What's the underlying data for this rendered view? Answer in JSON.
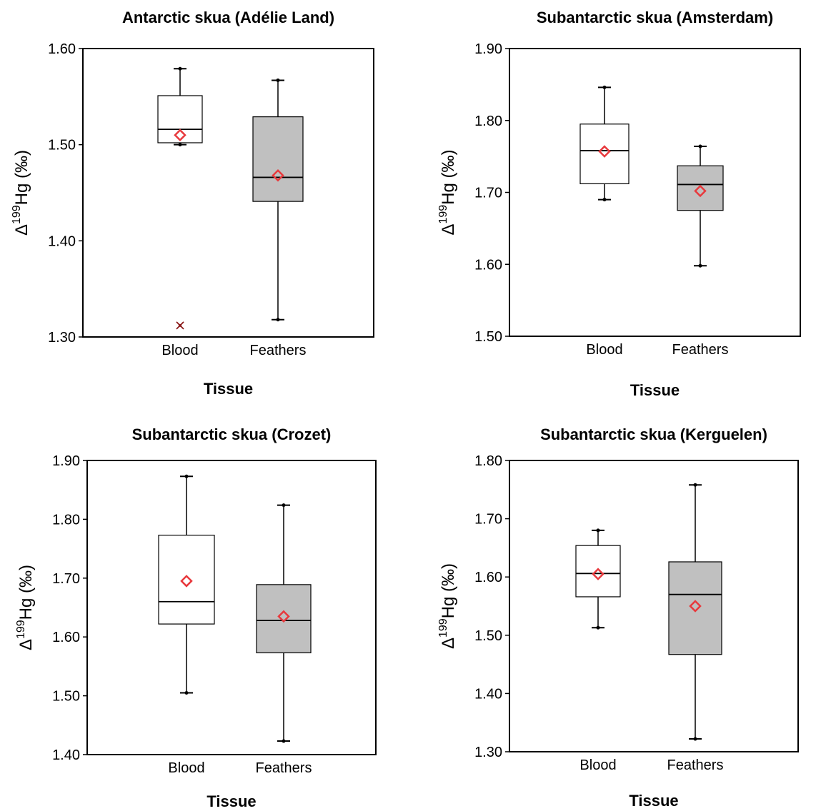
{
  "chart_data": [
    {
      "type": "box",
      "title": "Antarctic skua (Adélie Land)",
      "xlabel": "Tissue",
      "ylabel": {
        "prefix": "Δ",
        "sup": "199",
        "main": "Hg (‰)"
      },
      "ylim": [
        1.3,
        1.6
      ],
      "yticks": [
        "1.30",
        "1.40",
        "1.50",
        "1.60"
      ],
      "categories": [
        "Blood",
        "Feathers"
      ],
      "boxes": [
        {
          "category": "Blood",
          "min": 1.5,
          "q1": 1.502,
          "median": 1.516,
          "q3": 1.551,
          "max": 1.579,
          "mean": 1.51,
          "outliers": [
            1.312
          ],
          "fill": "#ffffff"
        },
        {
          "category": "Feathers",
          "min": 1.318,
          "q1": 1.441,
          "median": 1.466,
          "q3": 1.529,
          "max": 1.567,
          "mean": 1.468,
          "outliers": [],
          "fill": "#c0c0c0"
        }
      ]
    },
    {
      "type": "box",
      "title": "Subantarctic skua (Amsterdam)",
      "xlabel": "Tissue",
      "ylabel": {
        "prefix": "Δ",
        "sup": "199",
        "main": "Hg (‰)"
      },
      "ylim": [
        1.5,
        1.9
      ],
      "yticks": [
        "1.50",
        "1.60",
        "1.70",
        "1.80",
        "1.90"
      ],
      "categories": [
        "Blood",
        "Feathers"
      ],
      "boxes": [
        {
          "category": "Blood",
          "min": 1.69,
          "q1": 1.712,
          "median": 1.758,
          "q3": 1.795,
          "max": 1.846,
          "mean": 1.757,
          "outliers": [],
          "fill": "#ffffff"
        },
        {
          "category": "Feathers",
          "min": 1.598,
          "q1": 1.675,
          "median": 1.711,
          "q3": 1.737,
          "max": 1.764,
          "mean": 1.702,
          "outliers": [],
          "fill": "#c0c0c0"
        }
      ]
    },
    {
      "type": "box",
      "title": "Subantarctic skua (Crozet)",
      "xlabel": "Tissue",
      "ylabel": {
        "prefix": "Δ",
        "sup": "199",
        "main": "Hg (‰)"
      },
      "ylim": [
        1.4,
        1.9
      ],
      "yticks": [
        "1.40",
        "1.50",
        "1.60",
        "1.70",
        "1.80",
        "1.90"
      ],
      "categories": [
        "Blood",
        "Feathers"
      ],
      "boxes": [
        {
          "category": "Blood",
          "min": 1.505,
          "q1": 1.622,
          "median": 1.66,
          "q3": 1.773,
          "max": 1.873,
          "mean": 1.695,
          "outliers": [],
          "fill": "#ffffff"
        },
        {
          "category": "Feathers",
          "min": 1.423,
          "q1": 1.573,
          "median": 1.628,
          "q3": 1.689,
          "max": 1.824,
          "mean": 1.635,
          "outliers": [],
          "fill": "#c0c0c0"
        }
      ]
    },
    {
      "type": "box",
      "title": "Subantarctic skua (Kerguelen)",
      "xlabel": "Tissue",
      "ylabel": {
        "prefix": "Δ",
        "sup": "199",
        "main": "Hg (‰)"
      },
      "ylim": [
        1.3,
        1.8
      ],
      "yticks": [
        "1.30",
        "1.40",
        "1.50",
        "1.60",
        "1.70",
        "1.80"
      ],
      "categories": [
        "Blood",
        "Feathers"
      ],
      "boxes": [
        {
          "category": "Blood",
          "min": 1.513,
          "q1": 1.566,
          "median": 1.606,
          "q3": 1.654,
          "max": 1.68,
          "mean": 1.605,
          "outliers": [],
          "fill": "#ffffff"
        },
        {
          "category": "Feathers",
          "min": 1.322,
          "q1": 1.467,
          "median": 1.57,
          "q3": 1.626,
          "max": 1.758,
          "mean": 1.55,
          "outliers": [],
          "fill": "#c0c0c0"
        }
      ]
    }
  ],
  "colors": {
    "mean_marker": "#e8393d",
    "outlier_marker": "#8b1a1a",
    "axis": "#000000"
  }
}
